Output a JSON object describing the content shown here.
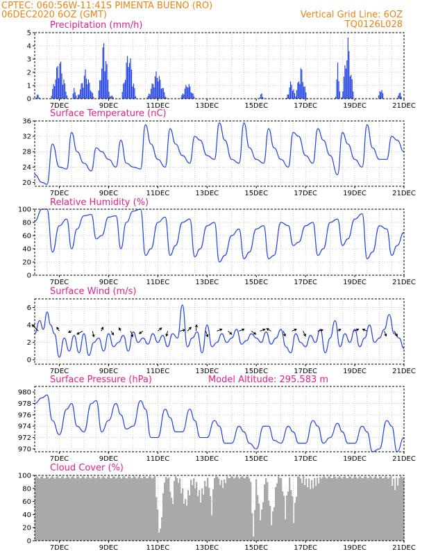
{
  "header": {
    "line1_left": "CPTEC:   060:56W-11:41S   PIMENTA BUENO (RO)",
    "line2_left": "06DEC2020 6OZ (GMT)",
    "line2_right": "Vertical Grid Line: 6OZ",
    "line3_right": "TQ0126L028"
  },
  "colors": {
    "header": "#e8851a",
    "panel_title": "#e0208c",
    "series": "#1f3fe0",
    "cloud": "#a9a9a9",
    "arrows": "#000000"
  },
  "chart_data": [
    {
      "type": "bar",
      "title": "Precipitation (mm/h)",
      "ylim": [
        0,
        5
      ],
      "yticks": [
        0,
        1,
        2,
        3,
        4,
        5
      ],
      "xticks": [
        "7DEC",
        "9DEC",
        "11DEC",
        "13DEC",
        "15DEC",
        "17DEC",
        "19DEC",
        "21DEC"
      ],
      "grid": true,
      "x_start": 0,
      "x_end": 15,
      "x_unit": "days since 06DEC2020",
      "events": [
        {
          "day": 0.1,
          "peak": 0.4,
          "width": 0.1
        },
        {
          "day": 0.98,
          "peak": 3.4,
          "width": 0.35
        },
        {
          "day": 1.6,
          "peak": 1.0,
          "width": 0.1
        },
        {
          "day": 2.05,
          "peak": 2.3,
          "width": 0.35
        },
        {
          "day": 2.8,
          "peak": 4.9,
          "width": 0.25
        },
        {
          "day": 3.1,
          "peak": 0.4,
          "width": 0.1
        },
        {
          "day": 3.8,
          "peak": 4.1,
          "width": 0.3
        },
        {
          "day": 4.6,
          "peak": 0.3,
          "width": 0.1
        },
        {
          "day": 4.95,
          "peak": 2.3,
          "width": 0.4
        },
        {
          "day": 6.2,
          "peak": 1.4,
          "width": 0.3
        },
        {
          "day": 9.2,
          "peak": 0.5,
          "width": 0.1
        },
        {
          "day": 10.4,
          "peak": 1.5,
          "width": 0.2
        },
        {
          "day": 10.8,
          "peak": 2.6,
          "width": 0.25
        },
        {
          "day": 12.3,
          "peak": 3.1,
          "width": 0.1
        },
        {
          "day": 12.7,
          "peak": 4.9,
          "width": 0.25
        },
        {
          "day": 14.05,
          "peak": 1.1,
          "width": 0.12
        },
        {
          "day": 14.8,
          "peak": 0.7,
          "width": 0.1
        }
      ]
    },
    {
      "type": "line",
      "title": "Surface Temperature (nC)",
      "ylim": [
        19,
        36
      ],
      "yticks": [
        20,
        24,
        28,
        32,
        36
      ],
      "xticks": [
        "7DEC",
        "9DEC",
        "11DEC",
        "13DEC",
        "15DEC",
        "17DEC",
        "19DEC",
        "21DEC"
      ],
      "grid": true,
      "x": [
        0,
        0.3,
        0.5,
        0.72,
        1.0,
        1.3,
        1.5,
        1.72,
        2.0,
        2.3,
        2.5,
        2.72,
        3.0,
        3.3,
        3.5,
        3.72,
        4.0,
        4.3,
        4.5,
        4.72,
        5.0,
        5.3,
        5.5,
        5.72,
        6.0,
        6.3,
        6.5,
        6.72,
        7.0,
        7.3,
        7.5,
        7.72,
        8.0,
        8.3,
        8.5,
        8.72,
        9.0,
        9.3,
        9.5,
        9.72,
        10.0,
        10.3,
        10.5,
        10.72,
        11.0,
        11.3,
        11.5,
        11.72,
        12.0,
        12.3,
        12.5,
        12.72,
        13.0,
        13.3,
        13.5,
        13.72,
        14.0,
        14.3,
        14.5,
        14.72,
        15.0
      ],
      "values": [
        22,
        20,
        19.5,
        30,
        24,
        23.5,
        33,
        28,
        25,
        23,
        29,
        28,
        26,
        24,
        31,
        25,
        24,
        23.5,
        35,
        30,
        26,
        24,
        34,
        30,
        27,
        25,
        32,
        31,
        27,
        26,
        35.5,
        31,
        26,
        25,
        35.5,
        29,
        26,
        25,
        34,
        29,
        26,
        24,
        33,
        32,
        27,
        25,
        34,
        31,
        27,
        22,
        33,
        30,
        26,
        24,
        35,
        29,
        26,
        26,
        32,
        31,
        28
      ]
    },
    {
      "type": "line",
      "title": "Relative Humidity (%)",
      "ylim": [
        0,
        100
      ],
      "yticks": [
        0,
        20,
        40,
        60,
        80,
        100
      ],
      "xticks": [
        "7DEC",
        "9DEC",
        "11DEC",
        "13DEC",
        "15DEC",
        "17DEC",
        "19DEC",
        "21DEC"
      ],
      "grid": true,
      "x": [
        0,
        0.3,
        0.5,
        0.72,
        1.0,
        1.3,
        1.5,
        1.72,
        2.0,
        2.3,
        2.5,
        2.72,
        3.0,
        3.3,
        3.5,
        3.72,
        4.0,
        4.3,
        4.5,
        4.72,
        5.0,
        5.3,
        5.5,
        5.72,
        6.0,
        6.3,
        6.5,
        6.72,
        7.0,
        7.3,
        7.5,
        7.72,
        8.0,
        8.3,
        8.5,
        8.72,
        9.0,
        9.3,
        9.5,
        9.72,
        10.0,
        10.3,
        10.5,
        10.72,
        11.0,
        11.3,
        11.5,
        11.72,
        12.0,
        12.3,
        12.5,
        12.72,
        13.0,
        13.3,
        13.5,
        13.72,
        14.0,
        14.3,
        14.5,
        14.72,
        15.0
      ],
      "values": [
        82,
        100,
        100,
        35,
        75,
        85,
        40,
        70,
        90,
        92,
        55,
        60,
        88,
        90,
        40,
        80,
        97,
        100,
        30,
        40,
        80,
        88,
        30,
        45,
        80,
        85,
        28,
        40,
        75,
        80,
        20,
        30,
        60,
        70,
        25,
        35,
        70,
        75,
        25,
        30,
        80,
        75,
        45,
        50,
        75,
        80,
        30,
        40,
        80,
        85,
        45,
        55,
        85,
        93,
        25,
        35,
        75,
        70,
        30,
        45,
        65
      ]
    },
    {
      "type": "line",
      "title": "Surface Wind (m/s)",
      "ylim": [
        -0.5,
        7
      ],
      "yticks": [
        0,
        2,
        4,
        6
      ],
      "xticks": [
        "7DEC",
        "9DEC",
        "11DEC",
        "13DEC",
        "15DEC",
        "17DEC",
        "19DEC",
        "21DEC"
      ],
      "grid": true,
      "x": [
        0,
        0.2,
        0.35,
        0.5,
        0.65,
        0.8,
        1.0,
        1.2,
        1.4,
        1.6,
        1.8,
        2.0,
        2.2,
        2.4,
        2.6,
        2.8,
        3.0,
        3.2,
        3.4,
        3.6,
        3.8,
        4.0,
        4.2,
        4.4,
        4.6,
        4.8,
        5.0,
        5.2,
        5.4,
        5.6,
        5.8,
        6.0,
        6.2,
        6.4,
        6.6,
        6.8,
        7.0,
        7.2,
        7.4,
        7.6,
        7.8,
        8.0,
        8.2,
        8.4,
        8.6,
        8.8,
        9.0,
        9.2,
        9.4,
        9.6,
        9.8,
        10.0,
        10.2,
        10.4,
        10.6,
        10.8,
        11.0,
        11.2,
        11.4,
        11.6,
        11.8,
        12.0,
        12.2,
        12.4,
        12.6,
        12.8,
        13.0,
        13.2,
        13.4,
        13.6,
        13.8,
        14.0,
        14.2,
        14.4,
        14.6,
        14.8,
        15.0
      ],
      "values": [
        3.0,
        4.5,
        3.5,
        5.5,
        4.0,
        3.0,
        0.3,
        2.5,
        1.0,
        2.8,
        0.8,
        3.0,
        0.5,
        2.0,
        2.5,
        1.0,
        3.0,
        1.5,
        2.0,
        2.8,
        1.0,
        3.2,
        2.0,
        2.5,
        1.8,
        3.0,
        2.0,
        2.8,
        1.5,
        3.0,
        2.5,
        6.3,
        1.5,
        2.5,
        3.2,
        0.8,
        4.0,
        1.5,
        2.0,
        3.0,
        2.0,
        2.5,
        3.5,
        1.8,
        2.2,
        3.0,
        2.5,
        2.0,
        3.2,
        1.8,
        2.5,
        3.5,
        1.5,
        0.8,
        3.0,
        2.0,
        1.5,
        2.8,
        2.0,
        3.5,
        0.8,
        2.5,
        4.5,
        1.5,
        3.0,
        2.0,
        3.5,
        1.5,
        2.5,
        4.0,
        2.0,
        2.5,
        3.5,
        5.2,
        3.0,
        2.5,
        1.3
      ],
      "arrows": [
        {
          "day": 0.15,
          "dx": -1.0,
          "dy": 1.0
        },
        {
          "day": 1.0,
          "dx": -0.4,
          "dy": 0.6
        },
        {
          "day": 1.5,
          "dx": -0.5,
          "dy": -0.2
        },
        {
          "day": 1.95,
          "dx": -0.9,
          "dy": -0.5
        },
        {
          "day": 2.35,
          "dx": 0.2,
          "dy": -0.9
        },
        {
          "day": 2.7,
          "dx": 0.3,
          "dy": 0.6
        },
        {
          "day": 3.1,
          "dx": 0.4,
          "dy": -0.6
        },
        {
          "day": 3.5,
          "dx": -0.3,
          "dy": 0.5
        },
        {
          "day": 3.9,
          "dx": 0.3,
          "dy": -0.9
        },
        {
          "day": 4.4,
          "dx": -0.6,
          "dy": -0.4
        },
        {
          "day": 5.0,
          "dx": 0.6,
          "dy": 0.5
        },
        {
          "day": 5.4,
          "dx": -0.2,
          "dy": -0.8
        },
        {
          "day": 5.9,
          "dx": 0.8,
          "dy": 0.2
        },
        {
          "day": 6.2,
          "dx": 0.6,
          "dy": 0.6
        },
        {
          "day": 6.55,
          "dx": 0.1,
          "dy": 1.0
        },
        {
          "day": 6.95,
          "dx": 0.3,
          "dy": -0.9
        },
        {
          "day": 7.4,
          "dx": 0.8,
          "dy": 0.3
        },
        {
          "day": 7.85,
          "dx": 0.6,
          "dy": -0.5
        },
        {
          "day": 8.3,
          "dx": 0.8,
          "dy": 0.3
        },
        {
          "day": 8.8,
          "dx": 0.7,
          "dy": -0.5
        },
        {
          "day": 9.15,
          "dx": 0.8,
          "dy": 0.3
        },
        {
          "day": 9.6,
          "dx": -0.7,
          "dy": 0.4
        },
        {
          "day": 10.1,
          "dx": 0.3,
          "dy": -0.8
        },
        {
          "day": 10.45,
          "dx": 0.7,
          "dy": 0.3
        },
        {
          "day": 10.9,
          "dx": 0.4,
          "dy": -0.8
        },
        {
          "day": 11.5,
          "dx": 0.8,
          "dy": 0.2
        },
        {
          "day": 12.3,
          "dx": 0.5,
          "dy": 0.3
        },
        {
          "day": 12.95,
          "dx": 0.8,
          "dy": 0.3
        },
        {
          "day": 13.5,
          "dx": -0.7,
          "dy": 0.3
        },
        {
          "day": 14.2,
          "dx": 0.3,
          "dy": -0.8
        },
        {
          "day": 14.6,
          "dx": 0.5,
          "dy": -0.8
        }
      ]
    },
    {
      "type": "line",
      "title": "Surface Pressure (hPa)",
      "subtitle": "Model Altitude: 295.583 m",
      "ylim": [
        969.5,
        981
      ],
      "yticks": [
        970,
        972,
        974,
        976,
        978,
        980
      ],
      "xticks": [
        "7DEC",
        "9DEC",
        "11DEC",
        "13DEC",
        "15DEC",
        "17DEC",
        "19DEC",
        "21DEC"
      ],
      "grid": true,
      "x": [
        0,
        0.3,
        0.5,
        0.72,
        1.0,
        1.3,
        1.5,
        1.72,
        2.0,
        2.3,
        2.5,
        2.72,
        3.0,
        3.3,
        3.5,
        3.72,
        4.0,
        4.3,
        4.5,
        4.72,
        5.0,
        5.3,
        5.5,
        5.72,
        6.0,
        6.3,
        6.5,
        6.72,
        7.0,
        7.3,
        7.5,
        7.72,
        8.0,
        8.3,
        8.5,
        8.72,
        9.0,
        9.3,
        9.5,
        9.72,
        10.0,
        10.3,
        10.5,
        10.72,
        11.0,
        11.3,
        11.5,
        11.72,
        12.0,
        12.3,
        12.5,
        12.72,
        13.0,
        13.3,
        13.5,
        13.72,
        14.0,
        14.3,
        14.5,
        14.72,
        15.0
      ],
      "values": [
        978,
        979,
        979.5,
        975,
        972.5,
        977,
        978,
        974,
        973,
        978,
        978.5,
        973,
        975,
        978,
        976,
        973.5,
        974,
        978.5,
        977,
        972,
        972,
        977,
        975.5,
        973,
        973,
        977,
        975,
        972,
        972,
        975,
        974,
        971,
        971,
        974,
        973,
        971,
        970,
        974,
        974,
        971.5,
        971,
        974,
        973,
        971,
        971,
        975,
        974,
        971,
        972,
        974.5,
        973,
        971,
        971,
        974,
        973,
        969.5,
        970,
        975,
        974,
        969.5,
        972
      ]
    },
    {
      "type": "bar",
      "title": "Cloud Cover (%)",
      "ylim": [
        0,
        100
      ],
      "yticks": [
        0,
        20,
        40,
        60,
        80,
        100
      ],
      "xticks": [
        "7DEC",
        "9DEC",
        "11DEC",
        "13DEC",
        "15DEC",
        "17DEC",
        "19DEC",
        "21DEC"
      ],
      "grid": true,
      "base_level": 97,
      "dips": [
        {
          "day": 5.05,
          "to": 2,
          "width": 0.2
        },
        {
          "day": 5.55,
          "to": 50,
          "width": 0.12
        },
        {
          "day": 6.1,
          "to": 55,
          "width": 0.3
        },
        {
          "day": 6.7,
          "to": 65,
          "width": 0.3
        },
        {
          "day": 7.15,
          "to": 40,
          "width": 0.12
        },
        {
          "day": 7.6,
          "to": 85,
          "width": 0.2
        },
        {
          "day": 8.85,
          "to": 2,
          "width": 0.12
        },
        {
          "day": 9.15,
          "to": 30,
          "width": 0.2
        },
        {
          "day": 9.6,
          "to": 25,
          "width": 0.22
        },
        {
          "day": 10.15,
          "to": 40,
          "width": 0.15
        },
        {
          "day": 10.5,
          "to": 30,
          "width": 0.15
        },
        {
          "day": 11.2,
          "to": 85,
          "width": 0.4
        },
        {
          "day": 14.6,
          "to": 85,
          "width": 0.2
        }
      ]
    }
  ]
}
